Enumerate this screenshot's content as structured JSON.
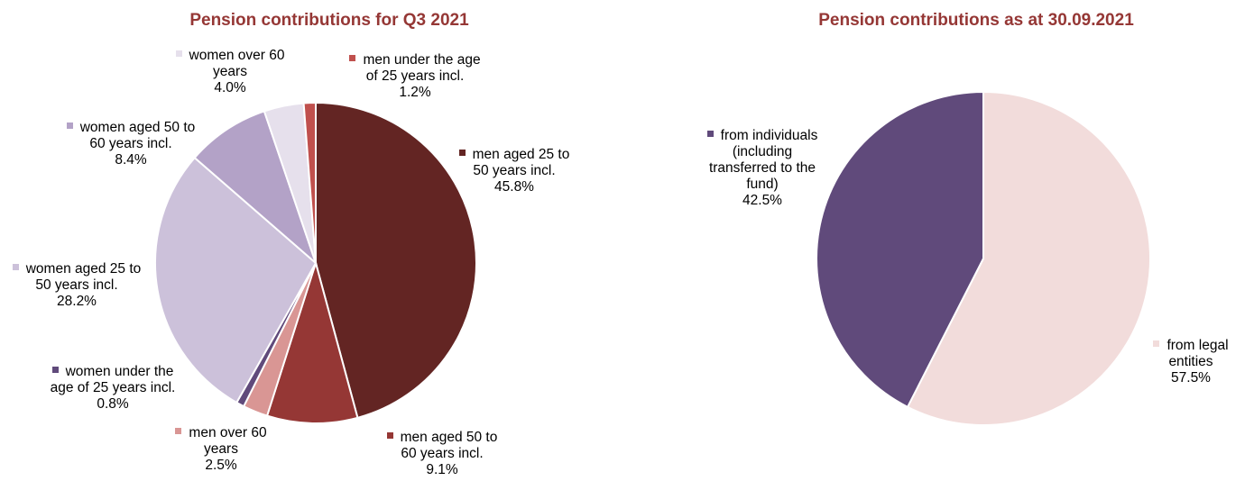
{
  "chart_data": [
    {
      "type": "pie",
      "title": "Pension contributions for Q3 2021",
      "categories": [
        "men aged 25 to 50 years incl.",
        "men aged 50 to 60 years incl.",
        "men over 60 years",
        "women under the age of 25 years incl.",
        "women aged 25 to 50 years incl.",
        "women aged 50 to 60 years incl.",
        "women over 60 years",
        "men under the age of 25 years incl."
      ],
      "values": [
        45.8,
        9.1,
        2.5,
        0.8,
        28.2,
        8.4,
        4.0,
        1.2
      ],
      "value_labels": [
        "45.8%",
        "9.1%",
        "2.5%",
        "0.8%",
        "28.2%",
        "8.4%",
        "4.0%",
        "1.2%"
      ],
      "colors": [
        "#632523",
        "#953735",
        "#d99694",
        "#604a7b",
        "#ccc1da",
        "#b3a2c7",
        "#e6e0ec",
        "#c0504d"
      ]
    },
    {
      "type": "pie",
      "title": "Pension contributions as at 30.09.2021",
      "categories": [
        "from legal entities",
        "from individuals (including transferred to the fund)"
      ],
      "values": [
        57.5,
        42.5
      ],
      "value_labels": [
        "57.5%",
        "42.5%"
      ],
      "colors": [
        "#f2dcdb",
        "#604a7b"
      ]
    }
  ]
}
